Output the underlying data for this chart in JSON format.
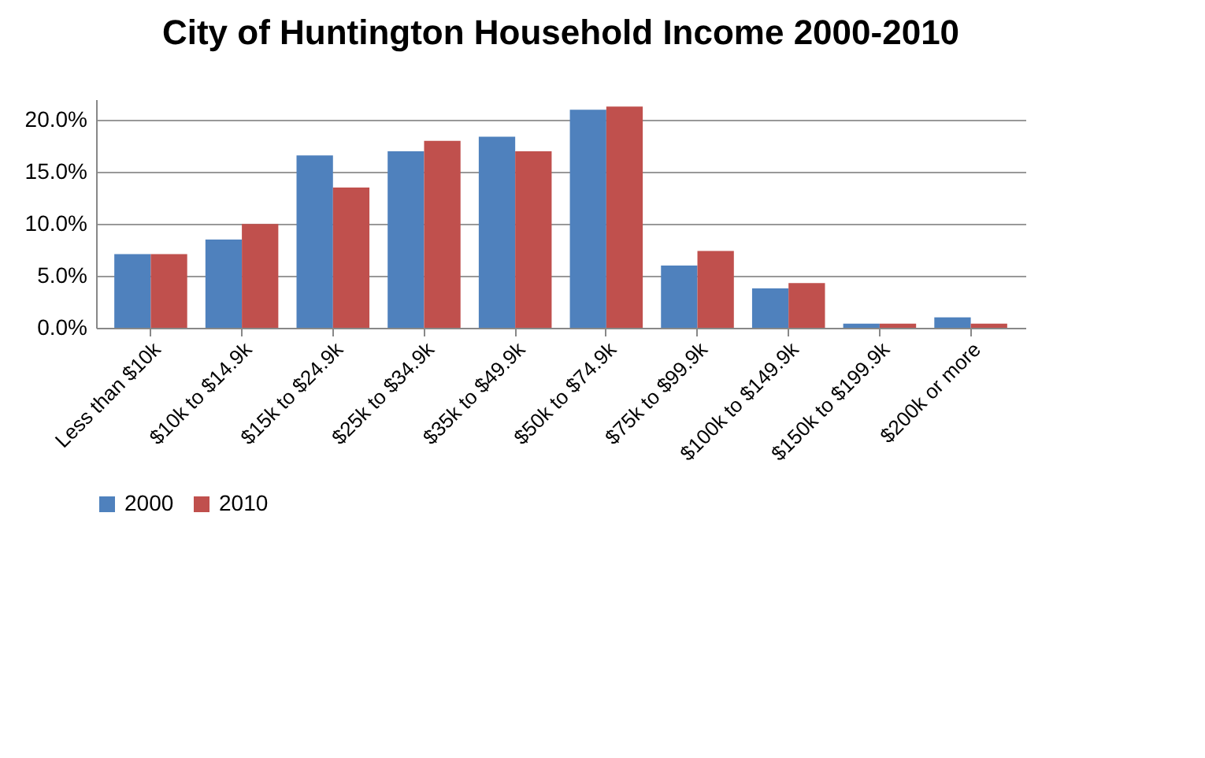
{
  "chart_data": {
    "type": "bar",
    "title": "City of Huntington Household Income 2000-2010",
    "categories": [
      "Less than $10k",
      "$10k to $14.9k",
      "$15k to $24.9k",
      "$25k to $34.9k",
      "$35k to $49.9k",
      "$50k to $74.9k",
      "$75k to $99.9k",
      "$100k to $149.9k",
      "$150k to $199.9k",
      "$200k or more"
    ],
    "series": [
      {
        "name": "2000",
        "color": "#4f81bd",
        "values": [
          7.1,
          8.5,
          16.6,
          17.0,
          18.4,
          21.0,
          6.0,
          3.8,
          0.4,
          1.0
        ]
      },
      {
        "name": "2010",
        "color": "#c0504d",
        "values": [
          7.1,
          10.0,
          13.5,
          18.0,
          17.0,
          21.3,
          7.4,
          4.3,
          0.4,
          0.4
        ]
      }
    ],
    "ylim": [
      0,
      22
    ],
    "yticks": [
      {
        "value": 0,
        "label": "0.0%"
      },
      {
        "value": 5,
        "label": "5.0%"
      },
      {
        "value": 10,
        "label": "10.0%"
      },
      {
        "value": 15,
        "label": "15.0%"
      },
      {
        "value": 20,
        "label": "20.0%"
      }
    ],
    "grid": "y",
    "legend": "bottom"
  }
}
